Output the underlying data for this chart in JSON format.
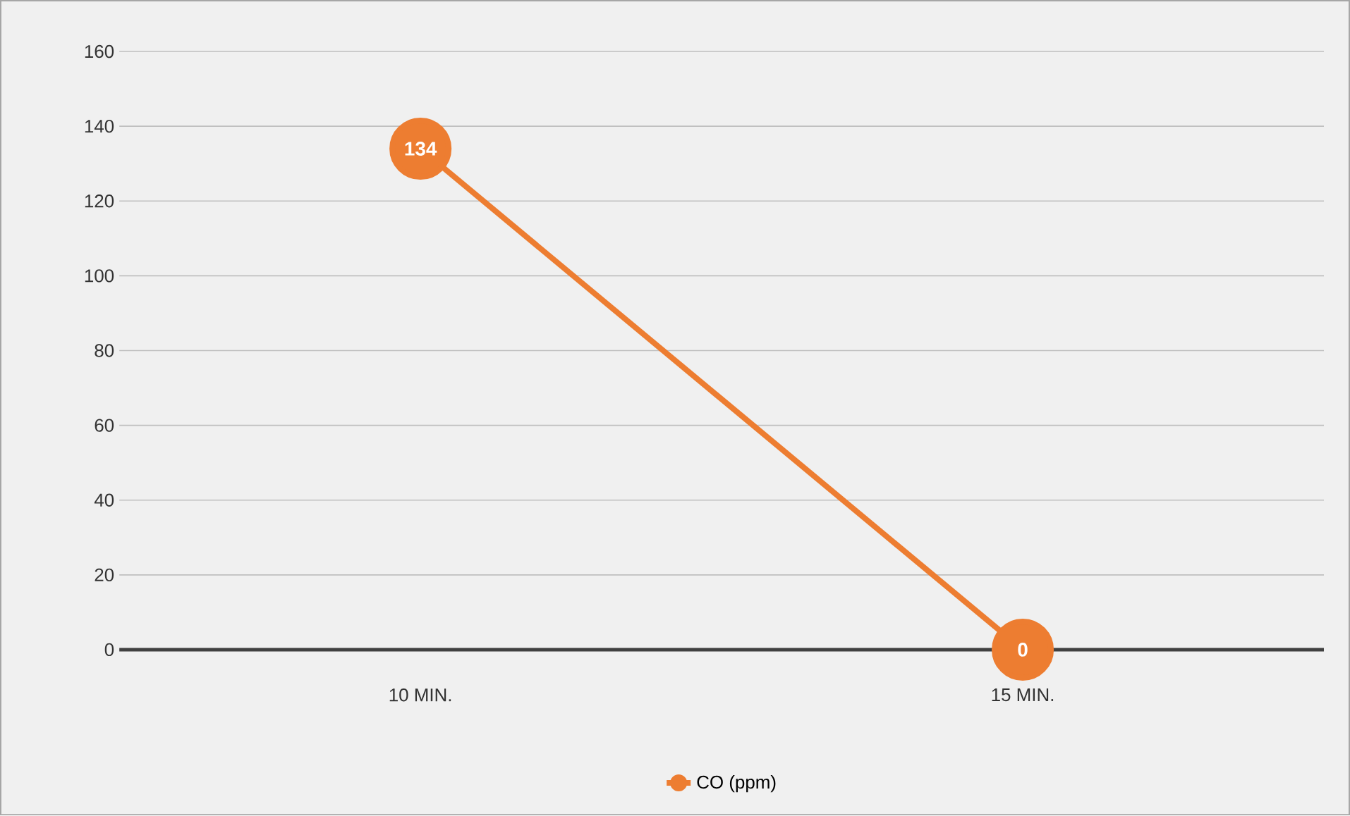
{
  "chart_data": {
    "type": "line",
    "categories": [
      "10 MIN.",
      "15 MIN."
    ],
    "series": [
      {
        "name": "CO (ppm)",
        "color": "#ed7d31",
        "values": [
          134,
          0
        ]
      }
    ],
    "ylim": [
      0,
      160
    ],
    "yticks": [
      0,
      20,
      40,
      60,
      80,
      100,
      120,
      140,
      160
    ],
    "grid": "y",
    "legend": "bottom",
    "marker": "circle",
    "line_style": "solid",
    "data_labels": true
  }
}
